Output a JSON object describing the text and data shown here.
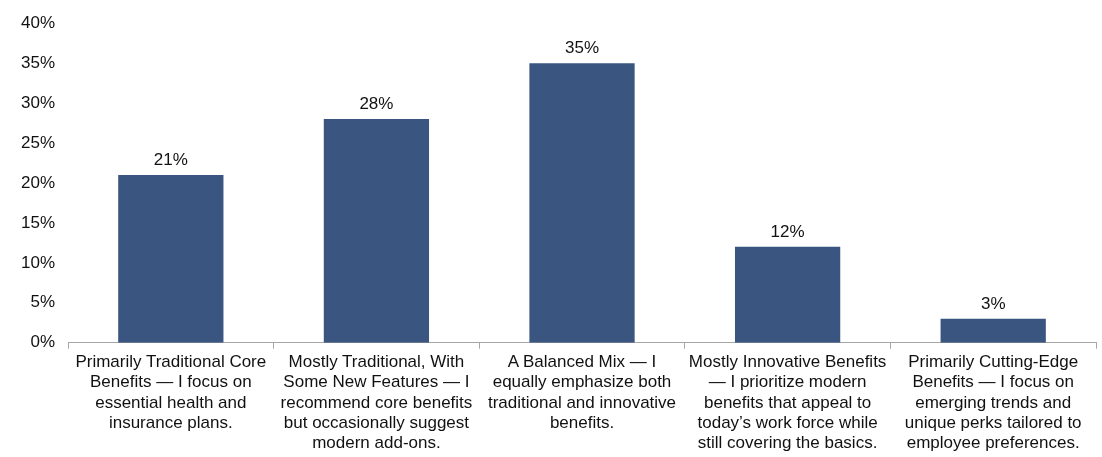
{
  "chart_data": {
    "type": "bar",
    "categories": [
      "Primarily Traditional Core Benefits — I focus on essential health and insurance plans.",
      "Mostly Traditional, With Some New Features — I recommend core benefits but occasionally suggest modern add-ons.",
      "A Balanced Mix — I equally emphasize both traditional and innovative benefits.",
      "Mostly Innovative Benefits — I prioritize modern benefits that appeal to today’s work force while still covering the basics.",
      "Primarily Cutting-Edge Benefits — I focus on emerging trends and unique perks tailored to employee preferences."
    ],
    "values": [
      21,
      28,
      35,
      12,
      3
    ],
    "color": "#3a5580",
    "value_labels": [
      "21%",
      "28%",
      "35%",
      "12%",
      "3%"
    ],
    "ylim": [
      0,
      40
    ],
    "yticks": [
      {
        "value": 0,
        "label": "0%"
      },
      {
        "value": 5,
        "label": "5%"
      },
      {
        "value": 10,
        "label": "10%"
      },
      {
        "value": 15,
        "label": "15%"
      },
      {
        "value": 20,
        "label": "20%"
      },
      {
        "value": 25,
        "label": "25%"
      },
      {
        "value": 30,
        "label": "30%"
      },
      {
        "value": 35,
        "label": "35%"
      },
      {
        "value": 40,
        "label": "40%"
      }
    ]
  }
}
